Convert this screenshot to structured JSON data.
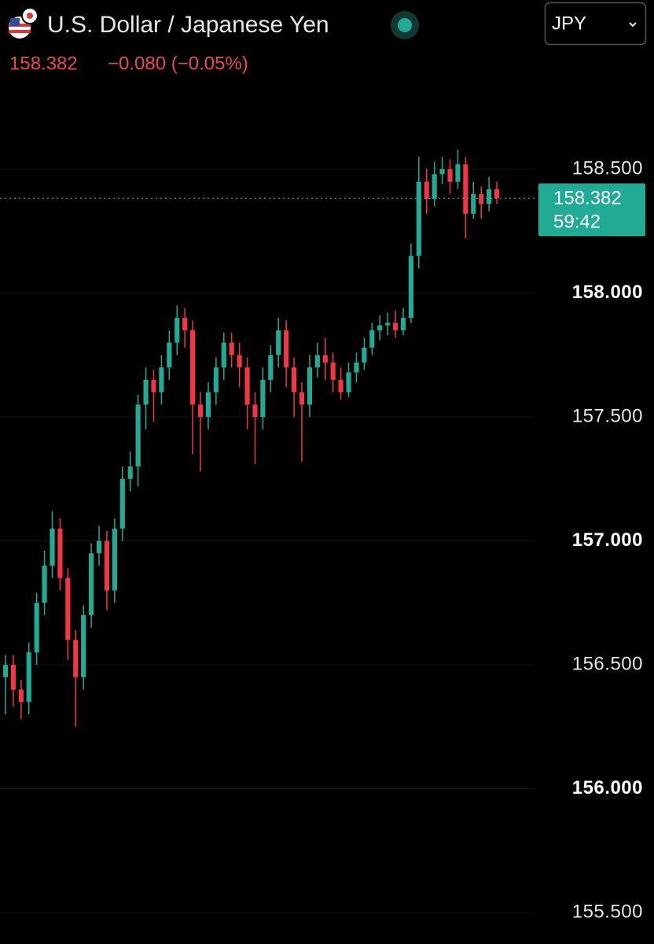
{
  "header": {
    "title": "U.S. Dollar / Japanese Yen",
    "change": "−0.080 (−0.05%)",
    "currency": "JPY"
  },
  "chart_data": {
    "type": "candlestick",
    "up_color": "#22ab94",
    "down_color": "#f23645",
    "ylim": [
      155.373,
      159.183
    ],
    "yticks": [
      {
        "value": 158.5,
        "label": "158.500"
      },
      {
        "value": 158,
        "label": "158.000"
      },
      {
        "value": 157.5,
        "label": "157.500"
      },
      {
        "value": 157,
        "label": "157.000"
      },
      {
        "value": 156.5,
        "label": "156.500"
      },
      {
        "value": 156,
        "label": "156.000"
      },
      {
        "value": 155.5,
        "label": "155.500"
      }
    ],
    "last_price": 158.382,
    "countdown": "59:42",
    "open": [
      156.45,
      156.5,
      156.4,
      156.35,
      156.55,
      156.75,
      156.9,
      157.05,
      156.85,
      156.6,
      156.45,
      156.7,
      156.95,
      157.0,
      156.8,
      157.05,
      157.25,
      157.3,
      157.55,
      157.65,
      157.6,
      157.7,
      157.8,
      157.9,
      157.85,
      157.55,
      157.5,
      157.6,
      157.7,
      157.8,
      157.75,
      157.7,
      157.55,
      157.5,
      157.65,
      157.75,
      157.85,
      157.7,
      157.6,
      157.55,
      157.7,
      157.75,
      157.72,
      157.65,
      157.6,
      157.68,
      157.72,
      157.78,
      157.85,
      157.87,
      157.88,
      157.85,
      157.9,
      158.15,
      158.45,
      158.38,
      158.48,
      158.5,
      158.45,
      158.52,
      158.32,
      158.4,
      158.36,
      158.42
    ],
    "high": [
      156.54,
      156.54,
      156.44,
      156.59,
      156.79,
      156.96,
      157.12,
      157.09,
      156.89,
      156.64,
      156.74,
      156.99,
      157.06,
      157.04,
      157.09,
      157.3,
      157.36,
      157.59,
      157.7,
      157.69,
      157.75,
      157.85,
      157.95,
      157.94,
      157.89,
      157.6,
      157.64,
      157.74,
      157.84,
      157.84,
      157.8,
      157.74,
      157.6,
      157.7,
      157.79,
      157.9,
      157.89,
      157.74,
      157.64,
      157.75,
      157.8,
      157.82,
      157.76,
      157.7,
      157.72,
      157.76,
      157.82,
      157.88,
      157.91,
      157.92,
      157.93,
      157.94,
      158.2,
      158.55,
      158.5,
      158.53,
      158.55,
      158.54,
      158.58,
      158.55,
      158.45,
      158.43,
      158.47,
      158.45
    ],
    "low": [
      156.3,
      156.33,
      156.28,
      156.3,
      156.5,
      156.7,
      156.85,
      156.8,
      156.52,
      156.25,
      156.4,
      156.65,
      156.9,
      156.72,
      156.75,
      157.0,
      157.2,
      157.22,
      157.45,
      157.48,
      157.55,
      157.65,
      157.75,
      157.78,
      157.35,
      157.28,
      157.45,
      157.55,
      157.65,
      157.7,
      157.62,
      157.45,
      157.31,
      157.45,
      157.6,
      157.7,
      157.62,
      157.5,
      157.32,
      157.5,
      157.66,
      157.65,
      157.6,
      157.57,
      157.58,
      157.64,
      157.69,
      157.75,
      157.81,
      157.83,
      157.82,
      157.83,
      157.88,
      158.1,
      158.32,
      158.35,
      158.44,
      158.4,
      158.42,
      158.22,
      158.3,
      158.3,
      158.33,
      158.36
    ],
    "close": [
      156.5,
      156.4,
      156.35,
      156.55,
      156.75,
      156.9,
      157.05,
      156.85,
      156.6,
      156.45,
      156.7,
      156.95,
      157.0,
      156.8,
      157.05,
      157.25,
      157.3,
      157.55,
      157.65,
      157.6,
      157.7,
      157.8,
      157.9,
      157.85,
      157.55,
      157.5,
      157.6,
      157.7,
      157.8,
      157.75,
      157.7,
      157.55,
      157.5,
      157.65,
      157.75,
      157.85,
      157.7,
      157.6,
      157.55,
      157.7,
      157.75,
      157.72,
      157.65,
      157.6,
      157.68,
      157.72,
      157.78,
      157.85,
      157.87,
      157.88,
      157.85,
      157.9,
      158.15,
      158.45,
      158.38,
      158.48,
      158.5,
      158.45,
      158.52,
      158.32,
      158.4,
      158.36,
      158.42,
      158.382
    ]
  }
}
